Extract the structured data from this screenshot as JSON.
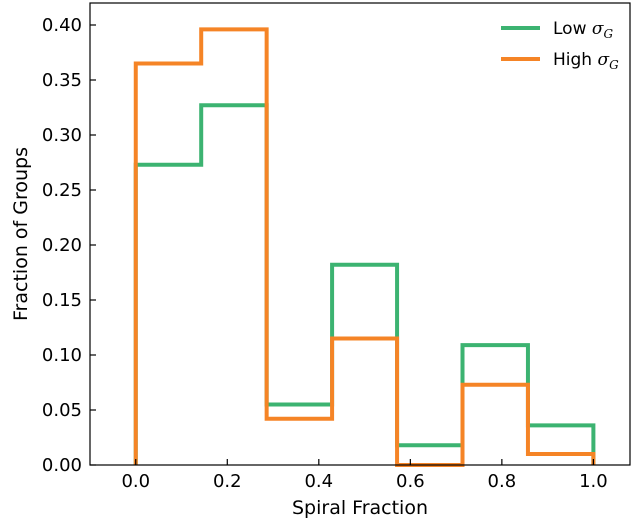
{
  "chart_data": {
    "type": "step-histogram",
    "xlabel": "Spiral Fraction",
    "ylabel": "Fraction of Groups",
    "xlim": [
      -0.1,
      1.08
    ],
    "ylim": [
      0.0,
      0.42
    ],
    "xticks": [
      "0.0",
      "0.2",
      "0.4",
      "0.6",
      "0.8",
      "1.0"
    ],
    "yticks": [
      "0.00",
      "0.05",
      "0.10",
      "0.15",
      "0.20",
      "0.25",
      "0.30",
      "0.35",
      "0.40"
    ],
    "bin_edges": [
      0.0,
      0.143,
      0.286,
      0.429,
      0.571,
      0.714,
      0.857,
      1.0
    ],
    "legend_position": "top-right",
    "series": [
      {
        "name": "Low",
        "name_symbol": "σ",
        "name_subscript": "G",
        "color": "#3cb371",
        "values": [
          0.273,
          0.327,
          0.055,
          0.182,
          0.018,
          0.109,
          0.036
        ]
      },
      {
        "name": "High",
        "name_symbol": "σ",
        "name_subscript": "G",
        "color": "#f58426",
        "values": [
          0.365,
          0.396,
          0.042,
          0.115,
          0.0,
          0.073,
          0.01
        ]
      }
    ]
  }
}
